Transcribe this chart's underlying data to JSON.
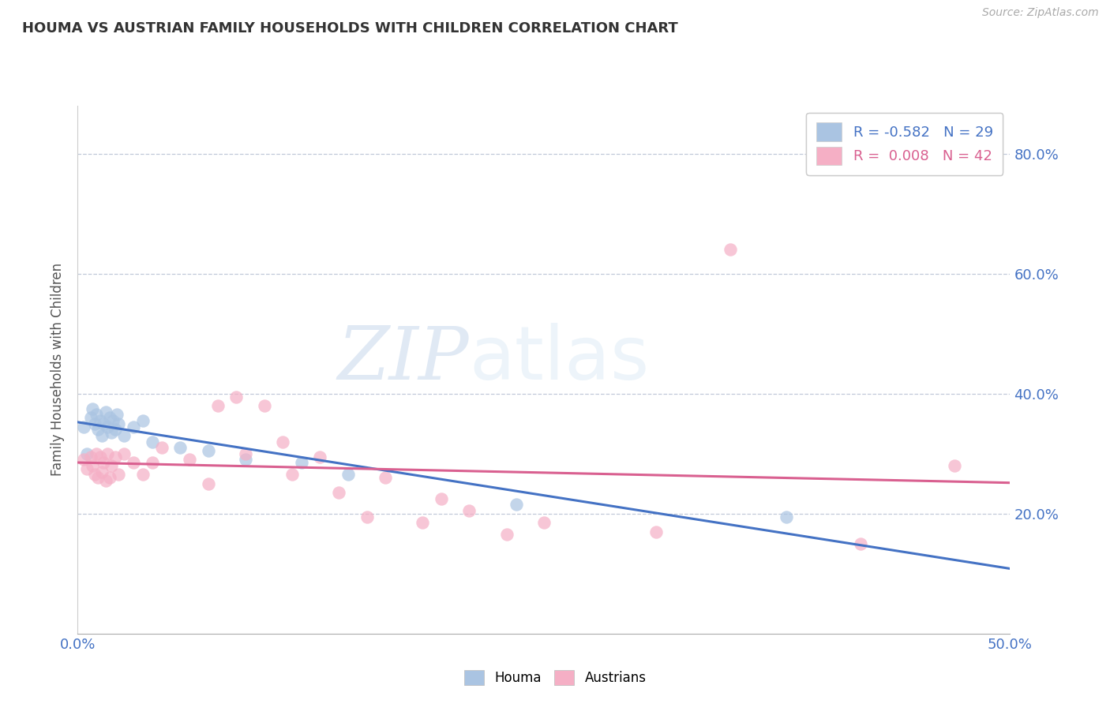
{
  "title": "HOUMA VS AUSTRIAN FAMILY HOUSEHOLDS WITH CHILDREN CORRELATION CHART",
  "source_text": "Source: ZipAtlas.com",
  "ylabel": "Family Households with Children",
  "xlim": [
    0.0,
    0.5
  ],
  "ylim": [
    0.0,
    0.88
  ],
  "houma_R": -0.582,
  "houma_N": 29,
  "austrians_R": 0.008,
  "austrians_N": 42,
  "houma_color": "#aac4e2",
  "austrians_color": "#f5afc5",
  "houma_line_color": "#4472c4",
  "austrians_line_color": "#d96090",
  "background_color": "#ffffff",
  "houma_points": [
    [
      0.003,
      0.345
    ],
    [
      0.005,
      0.3
    ],
    [
      0.007,
      0.36
    ],
    [
      0.008,
      0.375
    ],
    [
      0.009,
      0.35
    ],
    [
      0.01,
      0.365
    ],
    [
      0.011,
      0.34
    ],
    [
      0.012,
      0.355
    ],
    [
      0.013,
      0.33
    ],
    [
      0.014,
      0.35
    ],
    [
      0.015,
      0.37
    ],
    [
      0.016,
      0.345
    ],
    [
      0.017,
      0.36
    ],
    [
      0.018,
      0.335
    ],
    [
      0.019,
      0.355
    ],
    [
      0.02,
      0.34
    ],
    [
      0.021,
      0.365
    ],
    [
      0.022,
      0.35
    ],
    [
      0.025,
      0.33
    ],
    [
      0.03,
      0.345
    ],
    [
      0.035,
      0.355
    ],
    [
      0.04,
      0.32
    ],
    [
      0.055,
      0.31
    ],
    [
      0.07,
      0.305
    ],
    [
      0.09,
      0.29
    ],
    [
      0.12,
      0.285
    ],
    [
      0.145,
      0.265
    ],
    [
      0.235,
      0.215
    ],
    [
      0.38,
      0.195
    ]
  ],
  "austrians_points": [
    [
      0.003,
      0.29
    ],
    [
      0.005,
      0.275
    ],
    [
      0.007,
      0.295
    ],
    [
      0.008,
      0.28
    ],
    [
      0.009,
      0.265
    ],
    [
      0.01,
      0.3
    ],
    [
      0.011,
      0.26
    ],
    [
      0.012,
      0.295
    ],
    [
      0.013,
      0.27
    ],
    [
      0.014,
      0.285
    ],
    [
      0.015,
      0.255
    ],
    [
      0.016,
      0.3
    ],
    [
      0.017,
      0.26
    ],
    [
      0.018,
      0.28
    ],
    [
      0.02,
      0.295
    ],
    [
      0.022,
      0.265
    ],
    [
      0.025,
      0.3
    ],
    [
      0.03,
      0.285
    ],
    [
      0.035,
      0.265
    ],
    [
      0.04,
      0.285
    ],
    [
      0.045,
      0.31
    ],
    [
      0.06,
      0.29
    ],
    [
      0.07,
      0.25
    ],
    [
      0.075,
      0.38
    ],
    [
      0.085,
      0.395
    ],
    [
      0.09,
      0.3
    ],
    [
      0.1,
      0.38
    ],
    [
      0.11,
      0.32
    ],
    [
      0.115,
      0.265
    ],
    [
      0.13,
      0.295
    ],
    [
      0.14,
      0.235
    ],
    [
      0.155,
      0.195
    ],
    [
      0.165,
      0.26
    ],
    [
      0.185,
      0.185
    ],
    [
      0.195,
      0.225
    ],
    [
      0.21,
      0.205
    ],
    [
      0.23,
      0.165
    ],
    [
      0.25,
      0.185
    ],
    [
      0.31,
      0.17
    ],
    [
      0.35,
      0.64
    ],
    [
      0.42,
      0.15
    ],
    [
      0.47,
      0.28
    ]
  ]
}
